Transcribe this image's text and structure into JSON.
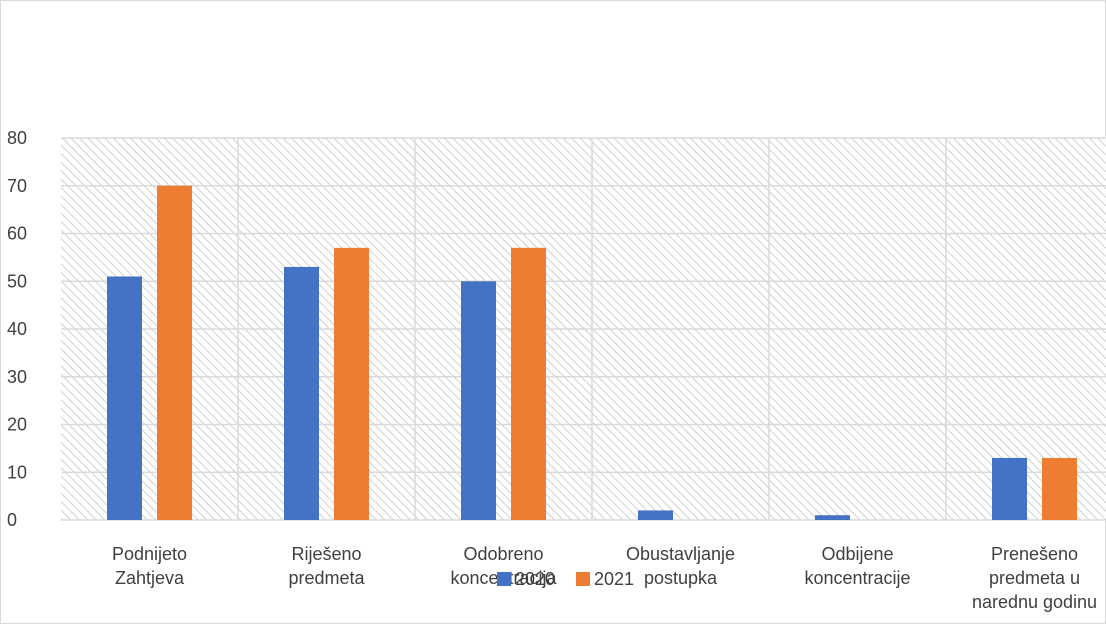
{
  "chart_data": {
    "type": "bar",
    "categories": [
      [
        "Podnijeto",
        "Zahtjeva"
      ],
      [
        "Riješeno",
        "predmeta"
      ],
      [
        "Odobreno",
        "koncentracija"
      ],
      [
        "Obustavljanje",
        "postupka"
      ],
      [
        "Odbijene",
        "koncentracije"
      ],
      [
        "Prenešeno",
        "predmeta u",
        "narednu godinu"
      ]
    ],
    "series": [
      {
        "name": "2020",
        "color": "#4472C4",
        "values": [
          51,
          53,
          50,
          2,
          1,
          13
        ]
      },
      {
        "name": "2021",
        "color": "#ED7D31",
        "values": [
          70,
          57,
          57,
          0,
          0,
          13
        ]
      }
    ],
    "ylim": [
      0,
      80
    ],
    "yticks": [
      0,
      10,
      20,
      30,
      40,
      50,
      60,
      70,
      80
    ],
    "grid": true,
    "legend_position": "bottom"
  }
}
